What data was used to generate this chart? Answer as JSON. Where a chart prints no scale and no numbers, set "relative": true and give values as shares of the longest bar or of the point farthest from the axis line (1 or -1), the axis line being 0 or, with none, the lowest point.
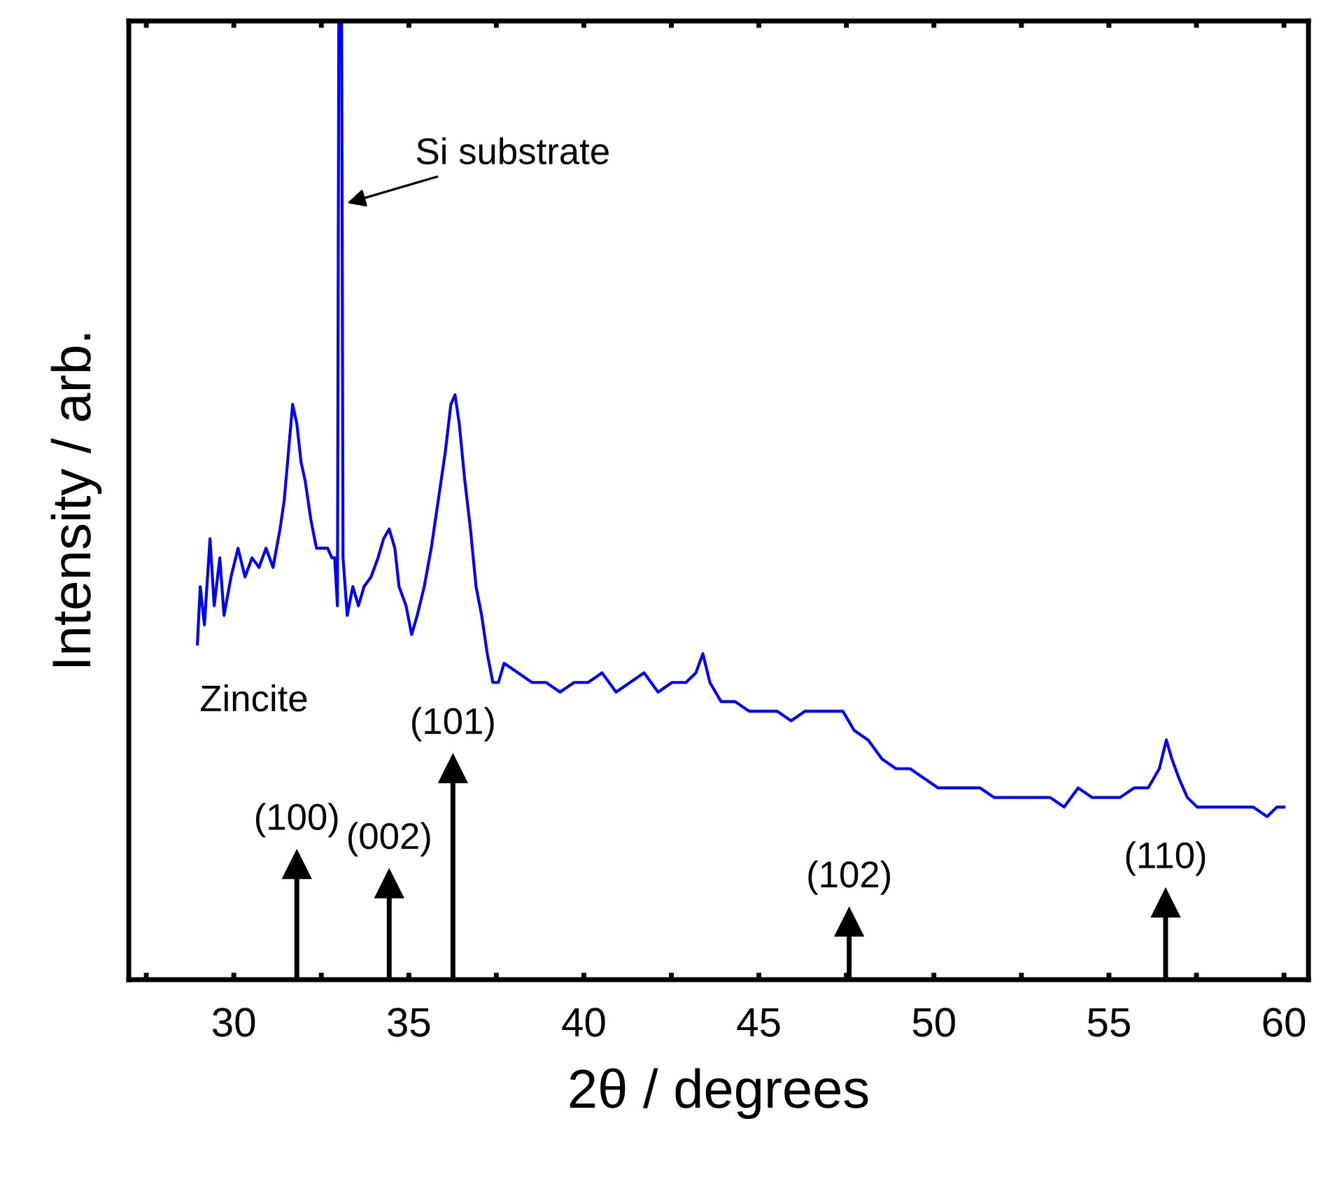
{
  "chart_data": {
    "type": "line",
    "xlabel": "2θ / degrees",
    "ylabel": "Intensity / arb.",
    "relative": true,
    "legend": false,
    "grid": false,
    "xlim": [
      27,
      60.7
    ],
    "xticks": [
      {
        "value": 27.5,
        "label": null
      },
      30,
      {
        "value": 32.5,
        "label": null
      },
      35,
      {
        "value": 37.5,
        "label": null
      },
      40,
      {
        "value": 42.5,
        "label": null
      },
      45,
      {
        "value": 47.5,
        "label": null
      },
      50,
      {
        "value": 52.5,
        "label": null
      },
      55,
      {
        "value": 57.5,
        "label": null
      },
      60
    ],
    "series": [
      {
        "color": "#0000ff",
        "x": [
          28.96,
          29.04,
          29.16,
          29.32,
          29.44,
          29.6,
          29.72,
          29.92,
          30.12,
          30.32,
          30.52,
          30.72,
          30.92,
          31.12,
          31.32,
          31.44,
          31.56,
          31.68,
          31.8,
          31.92,
          32.04,
          32.2,
          32.36,
          32.52,
          32.68,
          32.8,
          32.88,
          32.96,
          33.0,
          33.08,
          33.12,
          33.24,
          33.4,
          33.56,
          33.72,
          33.92,
          34.12,
          34.28,
          34.44,
          34.6,
          34.72,
          34.92,
          35.08,
          35.24,
          35.44,
          35.64,
          35.84,
          36.04,
          36.2,
          36.32,
          36.44,
          36.6,
          36.76,
          36.92,
          37.08,
          37.24,
          37.4,
          37.56,
          37.72,
          38.12,
          38.52,
          38.92,
          39.32,
          39.72,
          40.12,
          40.52,
          40.92,
          41.32,
          41.72,
          42.12,
          42.52,
          42.92,
          43.2,
          43.4,
          43.6,
          43.92,
          44.32,
          44.72,
          45.12,
          45.52,
          45.92,
          46.32,
          46.72,
          47.12,
          47.4,
          47.72,
          48.12,
          48.52,
          48.92,
          49.32,
          49.72,
          50.12,
          50.52,
          50.92,
          51.32,
          51.72,
          52.12,
          52.52,
          52.92,
          53.32,
          53.72,
          54.12,
          54.52,
          54.92,
          55.32,
          55.72,
          56.12,
          56.44,
          56.64,
          56.8,
          57.0,
          57.24,
          57.52,
          57.92,
          58.32,
          58.72,
          59.12,
          59.52,
          59.8,
          60.0
        ],
        "values": [
          0.35,
          0.41,
          0.37,
          0.46,
          0.39,
          0.44,
          0.38,
          0.42,
          0.45,
          0.42,
          0.44,
          0.43,
          0.45,
          0.43,
          0.47,
          0.5,
          0.55,
          0.6,
          0.58,
          0.54,
          0.52,
          0.48,
          0.45,
          0.45,
          0.45,
          0.44,
          0.44,
          0.39,
          1,
          1,
          0.44,
          0.38,
          0.41,
          0.39,
          0.41,
          0.42,
          0.44,
          0.46,
          0.47,
          0.45,
          0.41,
          0.39,
          0.36,
          0.38,
          0.41,
          0.45,
          0.5,
          0.55,
          0.6,
          0.61,
          0.58,
          0.52,
          0.47,
          0.41,
          0.38,
          0.34,
          0.31,
          0.31,
          0.33,
          0.32,
          0.31,
          0.31,
          0.3,
          0.31,
          0.31,
          0.32,
          0.3,
          0.31,
          0.32,
          0.3,
          0.31,
          0.31,
          0.32,
          0.34,
          0.31,
          0.29,
          0.29,
          0.28,
          0.28,
          0.28,
          0.27,
          0.28,
          0.28,
          0.28,
          0.28,
          0.26,
          0.25,
          0.23,
          0.22,
          0.22,
          0.21,
          0.2,
          0.2,
          0.2,
          0.2,
          0.19,
          0.19,
          0.19,
          0.19,
          0.19,
          0.18,
          0.2,
          0.19,
          0.19,
          0.19,
          0.2,
          0.2,
          0.22,
          0.25,
          0.23,
          0.21,
          0.19,
          0.18,
          0.18,
          0.18,
          0.18,
          0.18,
          0.17,
          0.18,
          0.18
        ]
      },
      {
        "type": "lollipop",
        "color": "#000000",
        "marker": "triangle",
        "x": [
          31.8,
          34.44,
          36.26,
          47.58,
          56.62
        ],
        "values": [
          0.12,
          0.1,
          0.22,
          0.06,
          0.08
        ]
      }
    ],
    "annotations": [
      {
        "text": "Si substrate",
        "x": 33.24,
        "y": 0.81
      },
      "Zincite",
      {
        "text": "(100)",
        "x": 31.8,
        "y": 0.12
      },
      {
        "text": "(002)",
        "x": 34.44,
        "y": 0.1
      },
      {
        "text": "(101)",
        "x": 36.26,
        "y": 0.22
      },
      {
        "text": "(102)",
        "x": 47.58,
        "y": 0.06
      },
      {
        "text": "(110)",
        "x": 56.62,
        "y": 0.08
      }
    ]
  }
}
